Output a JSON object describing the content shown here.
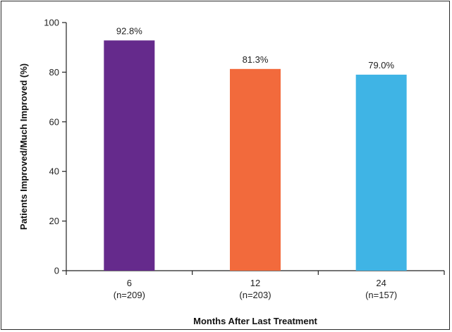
{
  "chart_data": {
    "type": "bar",
    "title": "",
    "xlabel": "Months After Last Treatment",
    "ylabel": "Patients Improved/Much Improved (%)",
    "ylim": [
      0,
      100
    ],
    "yticks": [
      0,
      20,
      40,
      60,
      80,
      100
    ],
    "grid": false,
    "categories": [
      "6",
      "12",
      "24"
    ],
    "category_sublabels": [
      "(n=209)",
      "(n=203)",
      "(n=157)"
    ],
    "values": [
      92.8,
      81.3,
      79.0
    ],
    "value_labels": [
      "92.8%",
      "81.3%",
      "79.0%"
    ],
    "colors": [
      "#652a8c",
      "#f26a3c",
      "#3fb4e5"
    ]
  }
}
